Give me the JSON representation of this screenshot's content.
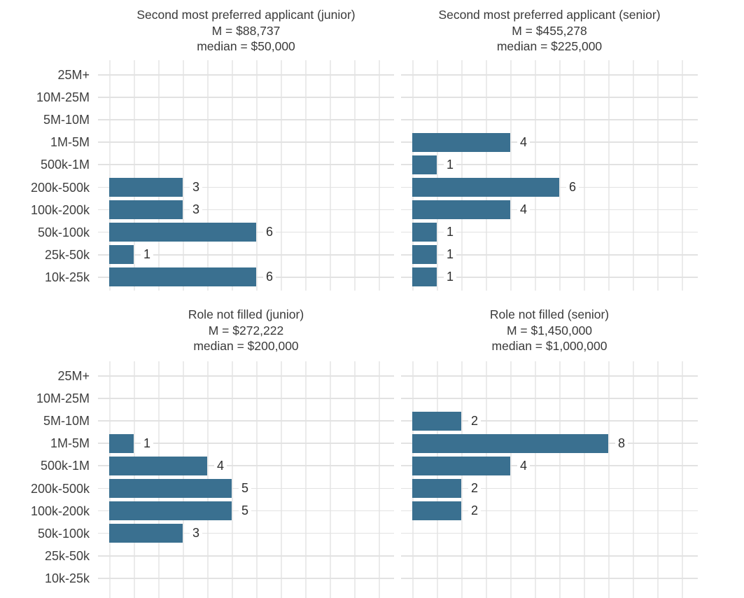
{
  "colors": {
    "bar": "#3a7090",
    "grid_vertical": "#ebebeb",
    "grid_horizontal": "#e2e2e2",
    "title_text": "#3a3a3a",
    "axis_text": "#3f3f3f",
    "value_text": "#2e2e2e",
    "background": "#ffffff"
  },
  "chart_data": [
    {
      "type": "bar",
      "orientation": "horizontal",
      "title": "Second most preferred applicant (junior)",
      "mean_label": "M = $88,737",
      "median_label": "median = $50,000",
      "categories": [
        "25M+",
        "10M-25M",
        "5M-10M",
        "1M-5M",
        "500k-1M",
        "200k-500k",
        "100k-200k",
        "50k-100k",
        "25k-50k",
        "10k-25k"
      ],
      "values": [
        0,
        0,
        0,
        0,
        0,
        3,
        3,
        6,
        1,
        6
      ],
      "xlim": [
        0,
        12
      ],
      "grid": true,
      "value_labels": true,
      "y_axis_labels_visible": true,
      "legend": false
    },
    {
      "type": "bar",
      "orientation": "horizontal",
      "title": "Second most preferred applicant (senior)",
      "mean_label": "M = $455,278",
      "median_label": "median = $225,000",
      "categories": [
        "25M+",
        "10M-25M",
        "5M-10M",
        "1M-5M",
        "500k-1M",
        "200k-500k",
        "100k-200k",
        "50k-100k",
        "25k-50k",
        "10k-25k"
      ],
      "values": [
        0,
        0,
        0,
        4,
        1,
        6,
        4,
        1,
        1,
        1
      ],
      "xlim": [
        0,
        12
      ],
      "grid": true,
      "value_labels": true,
      "y_axis_labels_visible": false,
      "legend": false
    },
    {
      "type": "bar",
      "orientation": "horizontal",
      "title": "Role not filled (junior)",
      "mean_label": "M = $272,222",
      "median_label": "median = $200,000",
      "categories": [
        "25M+",
        "10M-25M",
        "5M-10M",
        "1M-5M",
        "500k-1M",
        "200k-500k",
        "100k-200k",
        "50k-100k",
        "25k-50k",
        "10k-25k"
      ],
      "values": [
        0,
        0,
        0,
        1,
        4,
        5,
        5,
        3,
        0,
        0
      ],
      "xlim": [
        0,
        12
      ],
      "grid": true,
      "value_labels": true,
      "y_axis_labels_visible": true,
      "legend": false
    },
    {
      "type": "bar",
      "orientation": "horizontal",
      "title": "Role not filled (senior)",
      "mean_label": "M = $1,450,000",
      "median_label": "median = $1,000,000",
      "categories": [
        "25M+",
        "10M-25M",
        "5M-10M",
        "1M-5M",
        "500k-1M",
        "200k-500k",
        "100k-200k",
        "50k-100k",
        "25k-50k",
        "10k-25k"
      ],
      "values": [
        0,
        0,
        2,
        8,
        4,
        2,
        2,
        0,
        0,
        0
      ],
      "xlim": [
        0,
        12
      ],
      "grid": true,
      "value_labels": true,
      "y_axis_labels_visible": false,
      "legend": false
    }
  ]
}
